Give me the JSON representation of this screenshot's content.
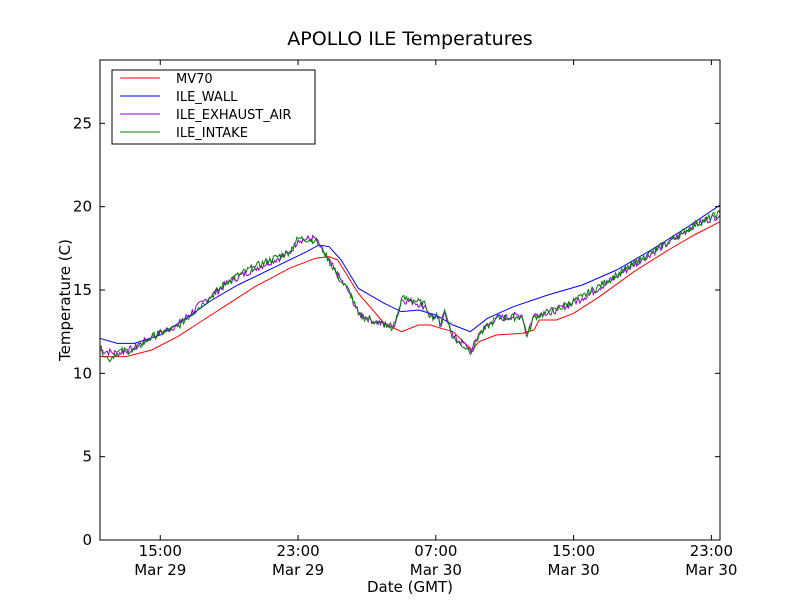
{
  "chart_data": {
    "type": "line",
    "title": "APOLLO ILE Temperatures",
    "xlabel": "Date (GMT)",
    "ylabel": "Temperature (C)",
    "ylim": [
      0,
      28.8
    ],
    "xlim_hours": [
      0,
      36
    ],
    "grid": false,
    "legend_position": "top-left",
    "yticks": [
      0,
      5,
      10,
      15,
      20,
      25
    ],
    "xticks": [
      {
        "hour": 3.5,
        "time": "15:00",
        "date": "Mar 29"
      },
      {
        "hour": 11.5,
        "time": "23:00",
        "date": "Mar 29"
      },
      {
        "hour": 19.5,
        "time": "07:00",
        "date": "Mar 30"
      },
      {
        "hour": 27.5,
        "time": "15:00",
        "date": "Mar 30"
      },
      {
        "hour": 35.5,
        "time": "23:00",
        "date": "Mar 30"
      }
    ],
    "series": [
      {
        "name": "MV70",
        "color": "#ff0000",
        "points": [
          [
            0,
            11.0
          ],
          [
            1.5,
            11.0
          ],
          [
            3,
            11.4
          ],
          [
            4.5,
            12.2
          ],
          [
            6,
            13.2
          ],
          [
            7.5,
            14.2
          ],
          [
            9,
            15.2
          ],
          [
            11,
            16.3
          ],
          [
            12.5,
            16.9
          ],
          [
            13.3,
            17.0
          ],
          [
            13.8,
            16.8
          ],
          [
            15,
            14.8
          ],
          [
            16.5,
            13.0
          ],
          [
            17.5,
            12.5
          ],
          [
            18.5,
            12.9
          ],
          [
            19.2,
            12.9
          ],
          [
            19.8,
            12.7
          ],
          [
            20.5,
            12.5
          ],
          [
            21.2,
            11.8
          ],
          [
            21.6,
            11.4
          ],
          [
            22,
            11.9
          ],
          [
            23,
            12.3
          ],
          [
            24.5,
            12.4
          ],
          [
            25.2,
            12.6
          ],
          [
            25.5,
            13.2
          ],
          [
            26.5,
            13.2
          ],
          [
            27.5,
            13.6
          ],
          [
            29,
            14.6
          ],
          [
            31,
            16.1
          ],
          [
            33,
            17.4
          ],
          [
            34.5,
            18.3
          ],
          [
            36,
            19.1
          ]
        ]
      },
      {
        "name": "ILE_WALL",
        "color": "#0000ff",
        "points": [
          [
            0,
            12.1
          ],
          [
            1,
            11.8
          ],
          [
            2,
            11.8
          ],
          [
            3.5,
            12.3
          ],
          [
            5,
            13.3
          ],
          [
            6.5,
            14.4
          ],
          [
            8,
            15.3
          ],
          [
            10,
            16.3
          ],
          [
            12,
            17.3
          ],
          [
            12.7,
            17.7
          ],
          [
            13.3,
            17.6
          ],
          [
            14,
            16.8
          ],
          [
            15,
            15.1
          ],
          [
            16.5,
            14.2
          ],
          [
            17.5,
            13.7
          ],
          [
            18.5,
            13.8
          ],
          [
            19.5,
            13.5
          ],
          [
            20.5,
            12.9
          ],
          [
            21.5,
            12.5
          ],
          [
            22.5,
            13.3
          ],
          [
            24,
            14.0
          ],
          [
            26,
            14.7
          ],
          [
            28,
            15.3
          ],
          [
            30,
            16.2
          ],
          [
            32,
            17.4
          ],
          [
            34,
            18.7
          ],
          [
            36,
            20.1
          ]
        ]
      },
      {
        "name": "ILE_EXHAUST_AIR",
        "color": "#9400d3",
        "points": [
          [
            0,
            11.4
          ],
          [
            1,
            11.2
          ],
          [
            2,
            11.5
          ],
          [
            3,
            12.2
          ],
          [
            4.5,
            12.9
          ],
          [
            6,
            14.3
          ],
          [
            7.5,
            15.5
          ],
          [
            9,
            16.3
          ],
          [
            11,
            17.2
          ],
          [
            11.5,
            18.0
          ],
          [
            12.5,
            18.1
          ],
          [
            13,
            17.2
          ],
          [
            14,
            15.6
          ],
          [
            14.5,
            14.8
          ],
          [
            15,
            13.6
          ],
          [
            16,
            13.1
          ],
          [
            17,
            12.8
          ],
          [
            17.3,
            13.5
          ],
          [
            17.5,
            14.4
          ],
          [
            18.2,
            14.3
          ],
          [
            18.9,
            14.0
          ],
          [
            19.2,
            13.5
          ],
          [
            19.6,
            13.3
          ],
          [
            19.8,
            12.9
          ],
          [
            20,
            13.7
          ],
          [
            20.3,
            12.9
          ],
          [
            20.5,
            12.2
          ],
          [
            21.3,
            11.6
          ],
          [
            21.6,
            11.4
          ],
          [
            22,
            12.4
          ],
          [
            23,
            13.3
          ],
          [
            24.5,
            13.5
          ],
          [
            24.8,
            12.4
          ],
          [
            25.2,
            13.5
          ],
          [
            26.5,
            13.8
          ],
          [
            28,
            14.5
          ],
          [
            30,
            15.8
          ],
          [
            31.5,
            16.9
          ],
          [
            33,
            17.8
          ],
          [
            34.5,
            18.9
          ],
          [
            36,
            19.5
          ]
        ]
      },
      {
        "name": "ILE_INTAKE",
        "color": "#008000",
        "points": [
          [
            0,
            11.5
          ],
          [
            0.5,
            10.8
          ],
          [
            1,
            11.3
          ],
          [
            2,
            11.4
          ],
          [
            3,
            12.2
          ],
          [
            4.5,
            12.8
          ],
          [
            6,
            14.2
          ],
          [
            7.5,
            15.6
          ],
          [
            9,
            16.4
          ],
          [
            11,
            17.3
          ],
          [
            11.5,
            18.1
          ],
          [
            12.5,
            18.0
          ],
          [
            13,
            17.3
          ],
          [
            14,
            15.5
          ],
          [
            14.5,
            14.9
          ],
          [
            15,
            13.5
          ],
          [
            16,
            13.1
          ],
          [
            17,
            12.7
          ],
          [
            17.3,
            13.6
          ],
          [
            17.5,
            14.5
          ],
          [
            18.2,
            14.4
          ],
          [
            18.9,
            14.1
          ],
          [
            19.2,
            13.4
          ],
          [
            19.6,
            13.4
          ],
          [
            19.8,
            12.8
          ],
          [
            20,
            13.8
          ],
          [
            20.3,
            12.8
          ],
          [
            20.5,
            12.1
          ],
          [
            21.3,
            11.5
          ],
          [
            21.6,
            11.3
          ],
          [
            22,
            12.3
          ],
          [
            23,
            13.3
          ],
          [
            24.5,
            13.4
          ],
          [
            24.8,
            12.2
          ],
          [
            25.2,
            13.4
          ],
          [
            26.5,
            13.8
          ],
          [
            28,
            14.6
          ],
          [
            30,
            15.9
          ],
          [
            31.5,
            16.9
          ],
          [
            33,
            17.9
          ],
          [
            34.5,
            18.9
          ],
          [
            36,
            19.6
          ]
        ]
      }
    ]
  }
}
